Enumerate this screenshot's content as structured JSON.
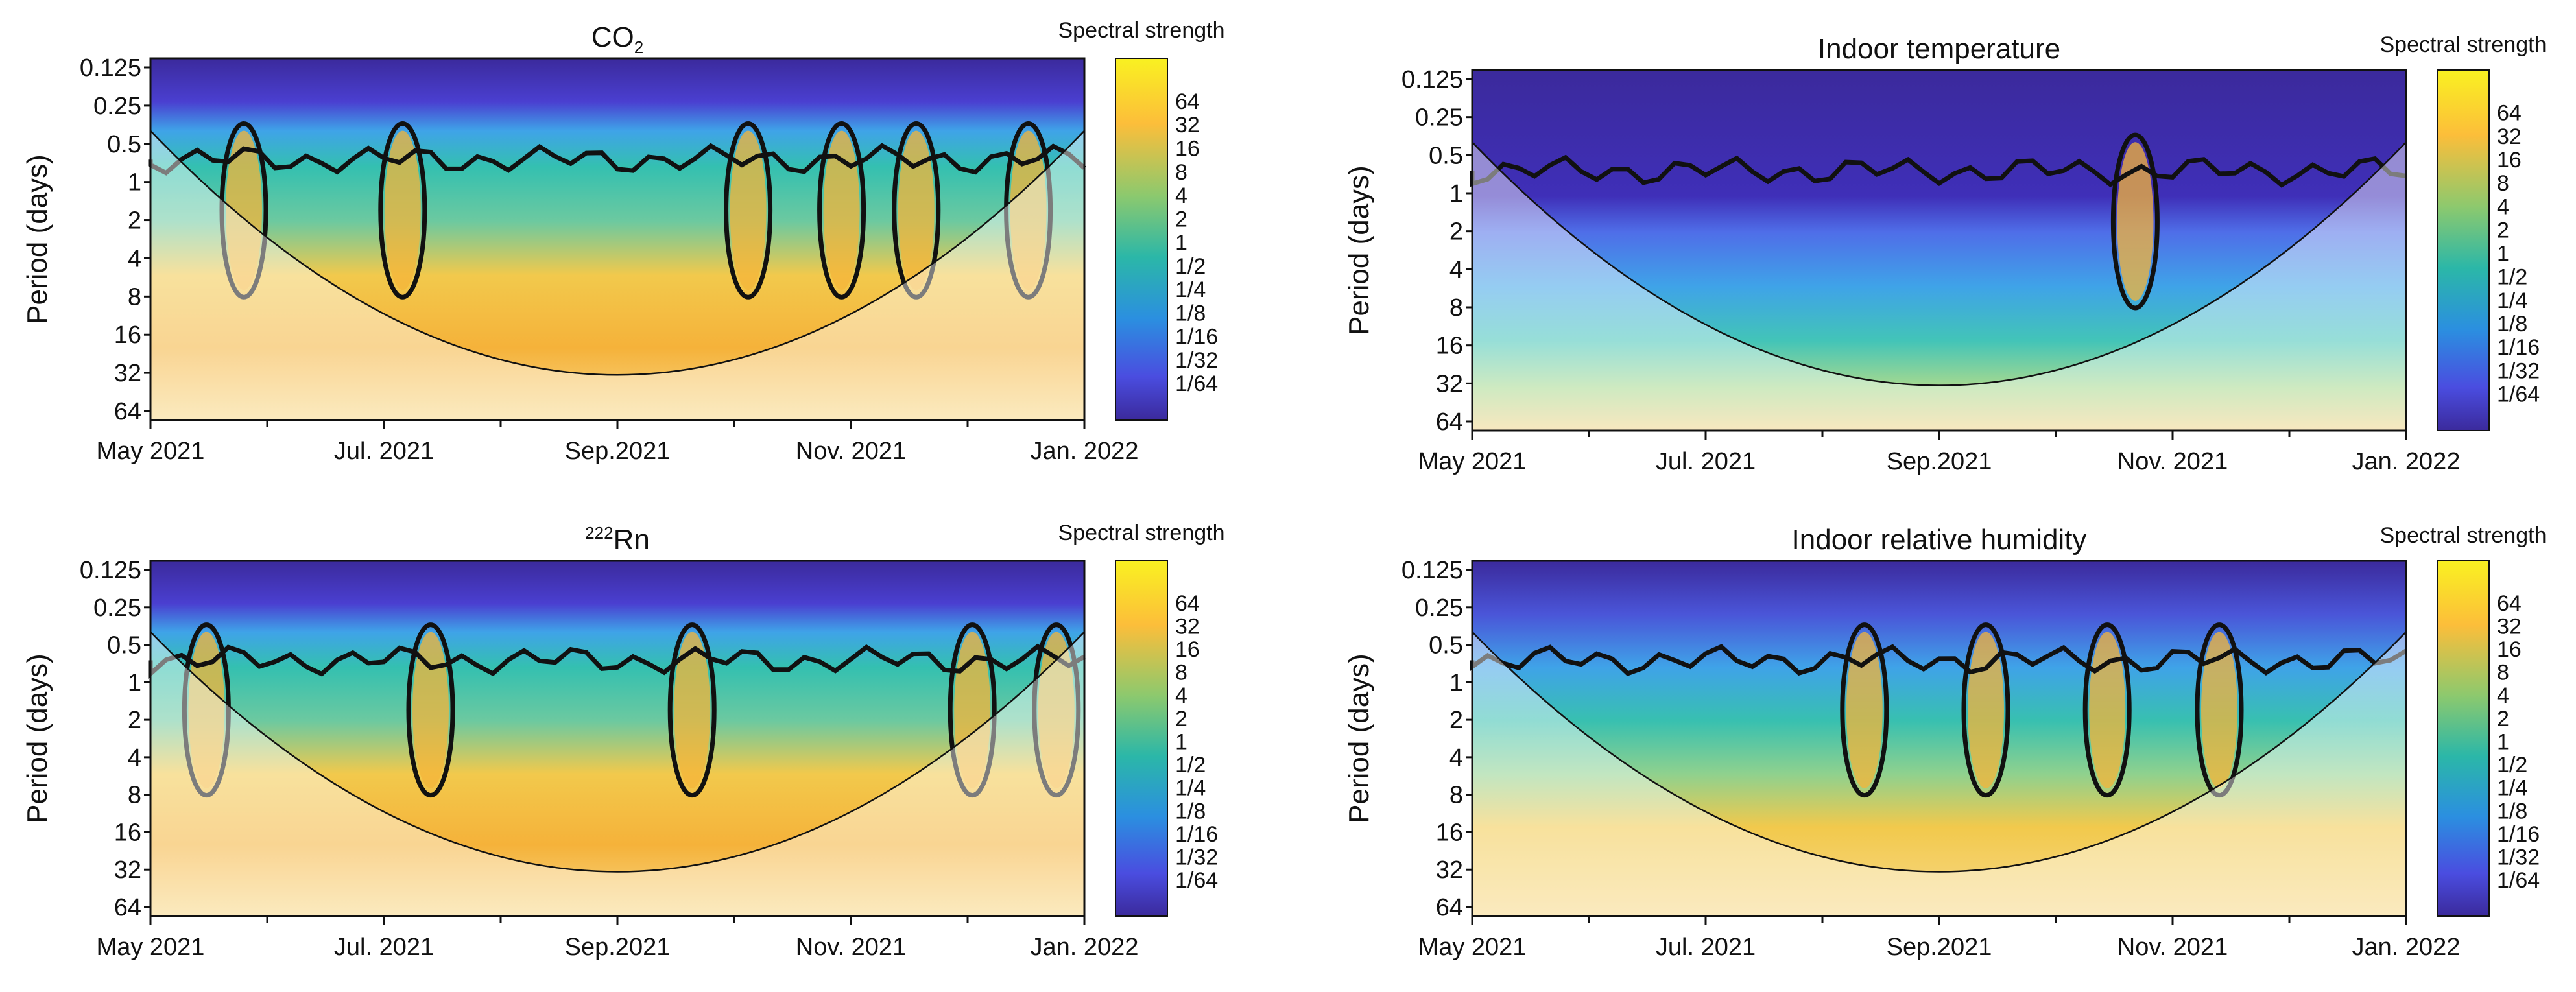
{
  "chart_data": [
    {
      "type": "heatmap",
      "title_main": "CO",
      "title_sub": "2",
      "title_pre": "",
      "ylabel": "Period (days)",
      "y_ticks": [
        "0.125",
        "0.25",
        "0.5",
        "1",
        "2",
        "4",
        "8",
        "16",
        "32",
        "64"
      ],
      "x_ticks": [
        "May 2021",
        "Jul. 2021",
        "Sep.2021",
        "Nov. 2021",
        "Jan. 2022"
      ],
      "colorbar_title": "Spectral strength",
      "colorbar_ticks": [
        "64",
        "32",
        "16",
        "8",
        "4",
        "2",
        "1",
        "1/2",
        "1/4",
        "1/8",
        "1/16",
        "1/32",
        "1/64"
      ],
      "x_range": [
        "2021-05",
        "2022-01"
      ],
      "y_range": [
        0.125,
        64
      ],
      "y_scale": "log2",
      "background": "mid",
      "spikes": [
        0.1,
        0.27,
        0.64,
        0.74,
        0.82,
        0.94
      ]
    },
    {
      "type": "heatmap",
      "title_main": "Indoor temperature",
      "title_sub": "",
      "title_pre": "",
      "ylabel": "Period (days)",
      "y_ticks": [
        "0.125",
        "0.25",
        "0.5",
        "1",
        "2",
        "4",
        "8",
        "16",
        "32",
        "64"
      ],
      "x_ticks": [
        "May 2021",
        "Jul. 2021",
        "Sep.2021",
        "Nov. 2021",
        "Jan. 2022"
      ],
      "colorbar_title": "Spectral strength",
      "colorbar_ticks": [
        "64",
        "32",
        "16",
        "8",
        "4",
        "2",
        "1",
        "1/2",
        "1/4",
        "1/8",
        "1/16",
        "1/32",
        "1/64"
      ],
      "x_range": [
        "2021-05",
        "2022-01"
      ],
      "y_range": [
        0.125,
        64
      ],
      "y_scale": "log2",
      "background": "low",
      "spikes": [
        0.71
      ]
    },
    {
      "type": "heatmap",
      "title_main": "Rn",
      "title_sub": "",
      "title_pre": "222",
      "ylabel": "Period (days)",
      "y_ticks": [
        "0.125",
        "0.25",
        "0.5",
        "1",
        "2",
        "4",
        "8",
        "16",
        "32",
        "64"
      ],
      "x_ticks": [
        "May 2021",
        "Jul. 2021",
        "Sep.2021",
        "Nov. 2021",
        "Jan. 2022"
      ],
      "colorbar_title": "Spectral strength",
      "colorbar_ticks": [
        "64",
        "32",
        "16",
        "8",
        "4",
        "2",
        "1",
        "1/2",
        "1/4",
        "1/8",
        "1/16",
        "1/32",
        "1/64"
      ],
      "x_range": [
        "2021-05",
        "2022-01"
      ],
      "y_range": [
        0.125,
        64
      ],
      "y_scale": "log2",
      "background": "mid",
      "spikes": [
        0.06,
        0.3,
        0.58,
        0.88,
        0.97
      ]
    },
    {
      "type": "heatmap",
      "title_main": "Indoor relative humidity",
      "title_sub": "",
      "title_pre": "",
      "ylabel": "Period (days)",
      "y_ticks": [
        "0.125",
        "0.25",
        "0.5",
        "1",
        "2",
        "4",
        "8",
        "16",
        "32",
        "64"
      ],
      "x_ticks": [
        "May 2021",
        "Jul. 2021",
        "Sep.2021",
        "Nov. 2021",
        "Jan. 2022"
      ],
      "colorbar_title": "Spectral strength",
      "colorbar_ticks": [
        "64",
        "32",
        "16",
        "8",
        "4",
        "2",
        "1",
        "1/2",
        "1/4",
        "1/8",
        "1/16",
        "1/32",
        "1/64"
      ],
      "x_range": [
        "2021-05",
        "2022-01"
      ],
      "y_range": [
        0.125,
        64
      ],
      "y_scale": "log2",
      "background": "humid",
      "spikes": [
        0.42,
        0.55,
        0.68,
        0.8
      ]
    }
  ]
}
